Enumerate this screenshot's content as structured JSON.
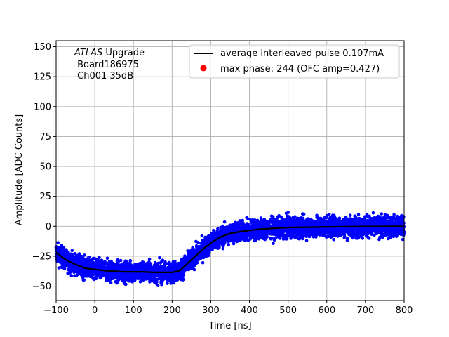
{
  "chart_data": {
    "type": "scatter",
    "xlabel": "Time [ns]",
    "ylabel": "Amplitude [ADC Counts]",
    "xlim": [
      -100,
      800
    ],
    "ylim": [
      -62,
      155
    ],
    "xticks": [
      -100,
      0,
      100,
      200,
      300,
      400,
      500,
      600,
      700,
      800
    ],
    "yticks": [
      -50,
      -25,
      0,
      25,
      50,
      75,
      100,
      125,
      150
    ],
    "x_tick_labels": [
      "−100",
      "0",
      "100",
      "200",
      "300",
      "400",
      "500",
      "600",
      "700",
      "800"
    ],
    "y_tick_labels": [
      "−50",
      "−25",
      "0",
      "25",
      "50",
      "75",
      "100",
      "125",
      "150"
    ],
    "grid": true,
    "annotation": {
      "line1_italic": "ATLAS",
      "line1_rest": " Upgrade",
      "line2": " Board186975",
      "line3": " Ch001 35dB"
    },
    "legend": {
      "placement": "upper-right",
      "entries": [
        {
          "label": "average interleaved pulse 0.107mA",
          "color": "#000000",
          "marker": "line"
        },
        {
          "label": "max phase: 244 (OFC amp=0.427)",
          "color": "#ff0000",
          "marker": "dot"
        }
      ]
    },
    "series": [
      {
        "kind": "scatter-band",
        "color": "#0000ff",
        "x": [
          -100,
          -75,
          -50,
          -25,
          0,
          25,
          50,
          75,
          100,
          125,
          150,
          175,
          200,
          220,
          240,
          260,
          280,
          300,
          325,
          350,
          375,
          400,
          425,
          450,
          475,
          500,
          550,
          600,
          650,
          700,
          750,
          800
        ],
        "y": [
          -22,
          -28,
          -32,
          -35,
          -36,
          -37,
          -37.5,
          -38,
          -38,
          -38,
          -38.5,
          -38.5,
          -38.5,
          -37,
          -31,
          -25,
          -19,
          -14,
          -9,
          -6,
          -4.5,
          -3.5,
          -2.5,
          -2,
          -1.5,
          -1,
          -0.8,
          -0.5,
          -0.3,
          -0.2,
          -0.1,
          0
        ],
        "spread": 6
      },
      {
        "kind": "line",
        "name": "average interleaved pulse 0.107mA",
        "color": "#000000",
        "x": [
          -100,
          -75,
          -50,
          -25,
          0,
          25,
          50,
          75,
          100,
          125,
          150,
          175,
          200,
          220,
          240,
          260,
          280,
          300,
          325,
          350,
          375,
          400,
          425,
          450,
          475,
          500,
          550,
          600,
          650,
          700,
          750,
          800
        ],
        "y": [
          -22,
          -28,
          -32,
          -35,
          -36,
          -37,
          -37.5,
          -38,
          -38,
          -38,
          -38.5,
          -38.5,
          -38.5,
          -37,
          -31,
          -25,
          -19,
          -14,
          -9,
          -6,
          -4.5,
          -3.5,
          -2.5,
          -2,
          -1.5,
          -1,
          -0.8,
          -0.5,
          -0.3,
          -0.2,
          -0.1,
          0
        ]
      }
    ]
  }
}
